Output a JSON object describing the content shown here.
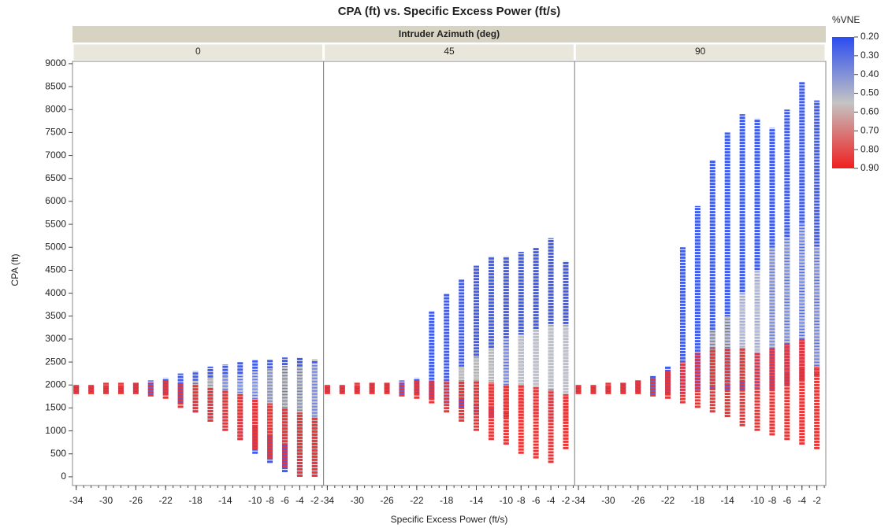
{
  "chart_data": {
    "type": "range-strip",
    "title": "CPA (ft) vs. Specific Excess Power (ft/s)",
    "xlabel": "Specific Excess Power (ft/s)",
    "ylabel": "CPA (ft)",
    "strip_title": "Intruder Azimuth (deg)",
    "xlim": [
      -34.5,
      -0.8
    ],
    "xticks": [
      -34,
      -30,
      -26,
      -22,
      -18,
      -14,
      -10,
      -8,
      -6,
      -4,
      -2
    ],
    "ylim": [
      -190,
      9050
    ],
    "yticks": [
      0,
      500,
      1000,
      1500,
      2000,
      2500,
      3000,
      3500,
      4000,
      4500,
      5000,
      5500,
      6000,
      6500,
      7000,
      7500,
      8000,
      8500,
      9000
    ],
    "colorbar": {
      "title": "%VNE",
      "lim": [
        0.2,
        0.9
      ],
      "colors": [
        "#2b4cf0",
        "#c4c4c4",
        "#f01e1e"
      ],
      "ticks": [
        {
          "value": 0.2,
          "label": "0.20"
        },
        {
          "value": 0.3,
          "label": "0.30"
        },
        {
          "value": 0.4,
          "label": "0.40"
        },
        {
          "value": 0.5,
          "label": "0.50"
        },
        {
          "value": 0.6,
          "label": "0.60"
        },
        {
          "value": 0.7,
          "label": "0.70"
        },
        {
          "value": 0.8,
          "label": "0.80"
        },
        {
          "value": 0.9,
          "label": "0.90"
        }
      ]
    },
    "facets": [
      {
        "label": "0",
        "groups": [
          {
            "vne": 0.25,
            "x": [
              -34,
              -32,
              -30,
              -28,
              -26,
              -24,
              -22,
              -20,
              -18,
              -16,
              -14,
              -12,
              -10,
              -8,
              -6,
              -4,
              -2
            ],
            "low": [
              1850,
              1850,
              1850,
              1850,
              1850,
              1800,
              1800,
              1600,
              1400,
              1200,
              1000,
              800,
              500,
              300,
              100,
              0,
              0
            ],
            "high": [
              2000,
              2000,
              2000,
              2000,
              2050,
              2100,
              2150,
              2250,
              2300,
              2400,
              2450,
              2500,
              2550,
              2550,
              2600,
              2600,
              2550
            ]
          },
          {
            "vne": 0.55,
            "x": [
              -18,
              -16,
              -14,
              -12,
              -10,
              -8,
              -6,
              -4,
              -2
            ],
            "low": [
              1700,
              1600,
              1500,
              1300,
              1100,
              900,
              700,
              500,
              300
            ],
            "high": [
              2100,
              2150,
              2200,
              2250,
              2300,
              2350,
              2400,
              2400,
              2450
            ]
          },
          {
            "vne": 0.85,
            "x": [
              -34,
              -32,
              -30,
              -28,
              -26,
              -24,
              -22,
              -20,
              -18,
              -16,
              -14,
              -12,
              -10,
              -8,
              -6,
              -4,
              -2
            ],
            "low": [
              1800,
              1800,
              1800,
              1800,
              1800,
              1750,
              1700,
              1500,
              1400,
              1200,
              1000,
              800,
              600,
              400,
              200,
              0,
              0
            ],
            "high": [
              2000,
              2000,
              2050,
              2050,
              2050,
              2050,
              2100,
              2050,
              2000,
              1950,
              1900,
              1800,
              1700,
              1600,
              1500,
              1400,
              1300
            ]
          }
        ]
      },
      {
        "label": "45",
        "groups": [
          {
            "vne": 0.25,
            "x": [
              -34,
              -32,
              -30,
              -28,
              -26,
              -24,
              -22,
              -20,
              -18,
              -16,
              -14,
              -12,
              -10,
              -8,
              -6,
              -4,
              -2
            ],
            "low": [
              1850,
              1850,
              1850,
              1850,
              1850,
              1800,
              1800,
              1700,
              1600,
              1500,
              1400,
              1300,
              1300,
              1300,
              1300,
              1200,
              1200
            ],
            "high": [
              2000,
              2000,
              2000,
              2050,
              2050,
              2100,
              2150,
              3600,
              4000,
              4300,
              4600,
              4800,
              4800,
              4900,
              5000,
              5200,
              4700
            ]
          },
          {
            "vne": 0.55,
            "x": [
              -16,
              -14,
              -12,
              -10,
              -8,
              -6,
              -4,
              -2
            ],
            "low": [
              1700,
              1600,
              1500,
              1400,
              1300,
              1300,
              1200,
              1200
            ],
            "high": [
              2400,
              2600,
              2800,
              3000,
              3100,
              3200,
              3300,
              3300
            ]
          },
          {
            "vne": 0.85,
            "x": [
              -34,
              -32,
              -30,
              -28,
              -26,
              -24,
              -22,
              -20,
              -18,
              -16,
              -14,
              -12,
              -10,
              -8,
              -6,
              -4,
              -2
            ],
            "low": [
              1800,
              1800,
              1800,
              1800,
              1800,
              1750,
              1700,
              1600,
              1400,
              1200,
              1000,
              800,
              700,
              500,
              400,
              300,
              600
            ],
            "high": [
              2000,
              2000,
              2050,
              2050,
              2050,
              2050,
              2100,
              2100,
              2100,
              2100,
              2100,
              2050,
              2000,
              2000,
              1950,
              1900,
              1800
            ]
          }
        ]
      },
      {
        "label": "90",
        "groups": [
          {
            "vne": 0.25,
            "x": [
              -34,
              -32,
              -30,
              -28,
              -26,
              -24,
              -22,
              -20,
              -18,
              -16,
              -14,
              -12,
              -10,
              -8,
              -6,
              -4,
              -2
            ],
            "low": [
              1850,
              1850,
              1850,
              1850,
              1850,
              1800,
              1800,
              1800,
              1900,
              1900,
              1900,
              1900,
              1900,
              1900,
              2000,
              2100,
              2200
            ],
            "high": [
              2000,
              2000,
              2000,
              2050,
              2100,
              2200,
              2400,
              5000,
              5900,
              6900,
              7500,
              7900,
              7800,
              7600,
              8000,
              8600,
              8200
            ]
          },
          {
            "vne": 0.55,
            "x": [
              -16,
              -14,
              -12,
              -10,
              -8,
              -6,
              -4,
              -2
            ],
            "low": [
              2000,
              2000,
              2100,
              2100,
              2200,
              2300,
              2400,
              2300
            ],
            "high": [
              3200,
              3500,
              4000,
              4500,
              5000,
              5200,
              5500,
              5000
            ]
          },
          {
            "vne": 0.85,
            "x": [
              -34,
              -32,
              -30,
              -28,
              -26,
              -24,
              -22,
              -20,
              -18,
              -16,
              -14,
              -12,
              -10,
              -8,
              -6,
              -4,
              -2
            ],
            "low": [
              1800,
              1800,
              1800,
              1800,
              1800,
              1750,
              1700,
              1600,
              1500,
              1400,
              1300,
              1100,
              1000,
              900,
              800,
              700,
              600
            ],
            "high": [
              2000,
              2000,
              2050,
              2050,
              2100,
              2150,
              2300,
              2500,
              2700,
              2800,
              2800,
              2800,
              2700,
              2800,
              2900,
              3000,
              2400
            ]
          }
        ]
      }
    ]
  }
}
